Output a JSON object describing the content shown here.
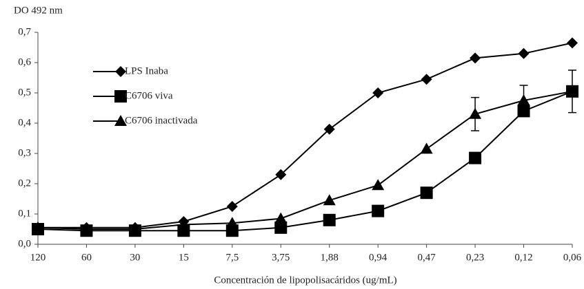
{
  "chart_data": {
    "type": "line",
    "title": "DO 492 nm",
    "x_label": "Concentración de lipopolisacáridos (ug/mL)",
    "categories": [
      "120",
      "60",
      "30",
      "15",
      "7,5",
      "3,75",
      "1,88",
      "0,94",
      "0,47",
      "0,23",
      "0,12",
      "0,06"
    ],
    "series": [
      {
        "name": "LPS Inaba",
        "color": "#000000",
        "marker": "diamond",
        "values": [
          0.055,
          0.055,
          0.055,
          0.075,
          0.125,
          0.23,
          0.38,
          0.5,
          0.545,
          0.615,
          0.63,
          0.665
        ]
      },
      {
        "name": "C6706 viva",
        "color": "#000000",
        "marker": "square",
        "values": [
          0.05,
          0.045,
          0.045,
          0.045,
          0.045,
          0.055,
          0.08,
          0.11,
          0.17,
          0.285,
          0.44,
          0.505
        ],
        "errors": [
          null,
          null,
          null,
          null,
          null,
          null,
          null,
          null,
          null,
          null,
          null,
          0.07
        ]
      },
      {
        "name": "C6706 inactivada",
        "color": "#000000",
        "marker": "triangle",
        "values": [
          0.055,
          0.05,
          0.05,
          0.065,
          0.07,
          0.085,
          0.145,
          0.195,
          0.315,
          0.43,
          0.475,
          0.505
        ],
        "errors": [
          null,
          null,
          null,
          null,
          null,
          null,
          null,
          null,
          null,
          0.055,
          0.05,
          null
        ]
      }
    ],
    "ylim": [
      0,
      0.7
    ],
    "yticks": [
      {
        "value": 0,
        "label": "0,0"
      },
      {
        "value": 0.1,
        "label": "0,1"
      },
      {
        "value": 0.2,
        "label": "0,2"
      },
      {
        "value": 0.3,
        "label": "0,3"
      },
      {
        "value": 0.4,
        "label": "0,4"
      },
      {
        "value": 0.5,
        "label": "0,5"
      },
      {
        "value": 0.6,
        "label": "0,6"
      },
      {
        "value": 0.7,
        "label": "0,7"
      }
    ],
    "legend": "upper left",
    "grid": false
  }
}
